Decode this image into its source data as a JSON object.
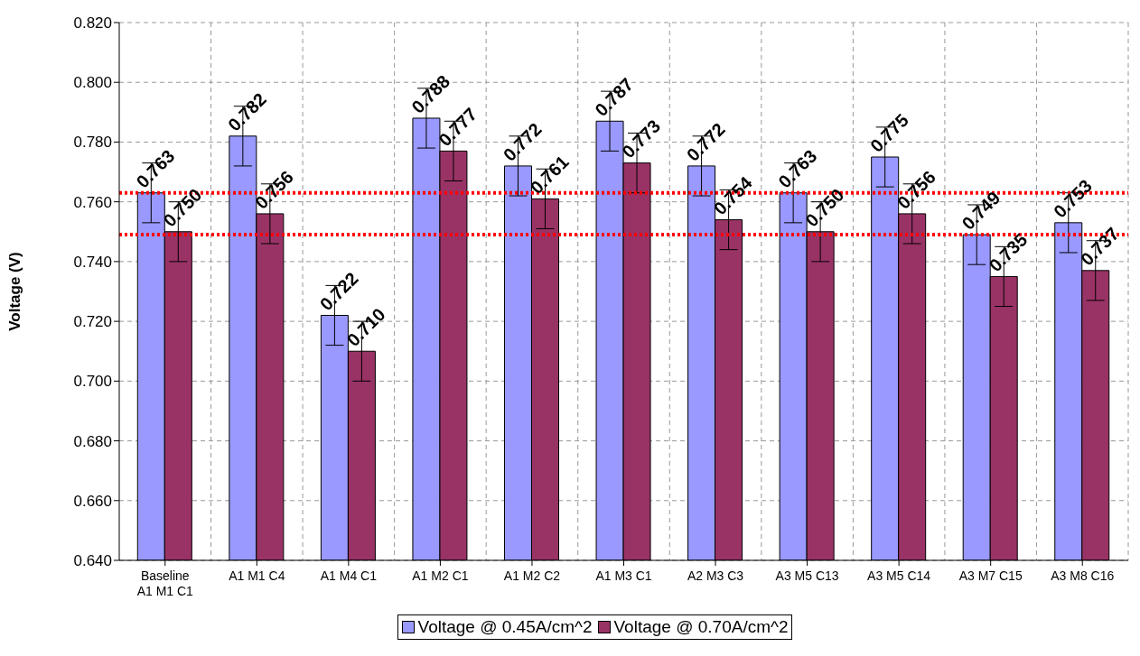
{
  "chart_data": {
    "type": "bar",
    "ylabel": "Voltage (V)",
    "categories": [
      "Baseline\nA1 M1 C1",
      "A1 M1 C4",
      "A1 M4 C1",
      "A1 M2 C1",
      "A1 M2 C2",
      "A1 M3 C1",
      "A2 M3 C3",
      "A3 M5 C13",
      "A3 M5 C14",
      "A3 M7 C15",
      "A3 M8 C16"
    ],
    "series": [
      {
        "name": "Voltage @ 0.45A/cm^2",
        "color": "#9999ff",
        "values": [
          0.763,
          0.782,
          0.722,
          0.788,
          0.772,
          0.787,
          0.772,
          0.763,
          0.775,
          0.749,
          0.753
        ],
        "errors": [
          0.01,
          0.01,
          0.01,
          0.01,
          0.01,
          0.01,
          0.01,
          0.01,
          0.01,
          0.01,
          0.01
        ],
        "value_labels": [
          "0.763",
          "0.782",
          "0.722",
          "0.788",
          "0.772",
          "0.787",
          "0.772",
          "0.763",
          "0.775",
          "0.749",
          "0.753"
        ]
      },
      {
        "name": "Voltage @ 0.70A/cm^2",
        "color": "#993366",
        "values": [
          0.75,
          0.756,
          0.71,
          0.777,
          0.761,
          0.773,
          0.754,
          0.75,
          0.756,
          0.735,
          0.737
        ],
        "errors": [
          0.01,
          0.01,
          0.01,
          0.01,
          0.01,
          0.01,
          0.01,
          0.01,
          0.01,
          0.01,
          0.01
        ],
        "value_labels": [
          "0.750",
          "0.756",
          "0.710",
          "0.777",
          "0.761",
          "0.773",
          "0.754",
          "0.750",
          "0.756",
          "0.735",
          "0.737"
        ]
      }
    ],
    "ylim": [
      0.64,
      0.82
    ],
    "yticks": [
      {
        "value": 0.64,
        "label": "0.640"
      },
      {
        "value": 0.66,
        "label": "0.660"
      },
      {
        "value": 0.68,
        "label": "0.680"
      },
      {
        "value": 0.7,
        "label": "0.700"
      },
      {
        "value": 0.72,
        "label": "0.720"
      },
      {
        "value": 0.74,
        "label": "0.740"
      },
      {
        "value": 0.76,
        "label": "0.760"
      },
      {
        "value": 0.78,
        "label": "0.780"
      },
      {
        "value": 0.8,
        "label": "0.800"
      },
      {
        "value": 0.82,
        "label": "0.820"
      }
    ],
    "ref_lines": [
      {
        "axis": "y",
        "value": 0.763,
        "color": "#ff0000",
        "line_style": "dotted"
      },
      {
        "axis": "y",
        "value": 0.749,
        "color": "#ff0000",
        "line_style": "dotted"
      }
    ],
    "grid": true,
    "legend": "bottom"
  }
}
